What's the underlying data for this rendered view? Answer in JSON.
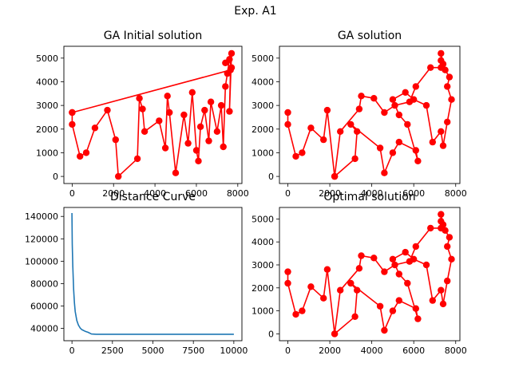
{
  "figure": {
    "suptitle": "Exp. A1",
    "route_color": "#ff0000",
    "curve_color": "#1f77b4"
  },
  "chart_data": [
    {
      "type": "line",
      "title": "GA Initial solution",
      "xlabel": "",
      "ylabel": "",
      "xlim": [
        -400,
        8200
      ],
      "ylim": [
        -300,
        5500
      ],
      "xticks": [
        0,
        2000,
        4000,
        6000,
        8000
      ],
      "yticks": [
        0,
        1000,
        2000,
        3000,
        4000,
        5000
      ],
      "marker": "o",
      "x": [
        0,
        0,
        380,
        680,
        1100,
        1700,
        2100,
        2230,
        3150,
        3250,
        3400,
        3500,
        4200,
        4500,
        4600,
        4700,
        5000,
        5400,
        5600,
        5800,
        6000,
        6100,
        6200,
        6400,
        6600,
        6700,
        7000,
        7200,
        7300,
        7400,
        7500,
        7600,
        7700,
        7400,
        7700,
        7600,
        7650,
        0
      ],
      "y": [
        2700,
        2200,
        850,
        1000,
        2050,
        2800,
        1550,
        0,
        750,
        3300,
        2850,
        1900,
        2350,
        1200,
        3400,
        2700,
        150,
        2600,
        1400,
        3550,
        1100,
        650,
        2100,
        2800,
        1500,
        3150,
        1900,
        3000,
        1250,
        3800,
        4350,
        4950,
        4600,
        4800,
        5200,
        2750,
        4500,
        2700
      ]
    },
    {
      "type": "line",
      "title": "GA solution",
      "xlabel": "",
      "ylabel": "",
      "xlim": [
        -400,
        8200
      ],
      "ylim": [
        -300,
        5500
      ],
      "xticks": [
        0,
        2000,
        4000,
        6000,
        8000
      ],
      "yticks": [
        0,
        1000,
        2000,
        3000,
        4000,
        5000
      ],
      "marker": "o",
      "x": [
        0,
        0,
        380,
        680,
        1100,
        1700,
        1880,
        2230,
        3200,
        3300,
        3000,
        4400,
        4600,
        5000,
        5300,
        6100,
        6200,
        5700,
        5300,
        5000,
        5600,
        6000,
        6600,
        6900,
        7300,
        7400,
        7600,
        7800,
        7600,
        7700,
        7500,
        7300,
        7300,
        7400,
        7300,
        6800,
        6100,
        5800,
        5100,
        4600,
        4100,
        3500,
        3400,
        2500,
        2230
      ],
      "y": [
        2700,
        2200,
        850,
        1000,
        2050,
        1550,
        2800,
        0,
        750,
        1900,
        2200,
        1200,
        150,
        1000,
        1450,
        1100,
        650,
        2200,
        2600,
        3250,
        3550,
        3250,
        3000,
        1450,
        1900,
        1300,
        2300,
        3250,
        3800,
        4200,
        4500,
        4900,
        5200,
        4750,
        4600,
        4600,
        3800,
        3150,
        3000,
        2700,
        3300,
        3400,
        2850,
        1900,
        0
      ]
    },
    {
      "type": "line",
      "title": "Distance Curve",
      "xlabel": "",
      "ylabel": "",
      "xlim": [
        -500,
        10500
      ],
      "ylim": [
        29000,
        148000
      ],
      "xticks": [
        0,
        2500,
        5000,
        7500,
        10000
      ],
      "yticks": [
        40000,
        60000,
        80000,
        100000,
        120000,
        140000
      ],
      "x": [
        0,
        20,
        50,
        100,
        150,
        200,
        300,
        400,
        500,
        600,
        800,
        1000,
        1200,
        1500,
        3000,
        5000,
        7500,
        10000
      ],
      "y": [
        143000,
        115000,
        95000,
        75000,
        63000,
        55000,
        47000,
        43000,
        40500,
        39000,
        37500,
        36500,
        35000,
        34800,
        34800,
        34800,
        34800,
        34800
      ]
    },
    {
      "type": "line",
      "title": "Optimal solution",
      "xlabel": "",
      "ylabel": "",
      "xlim": [
        -400,
        8200
      ],
      "ylim": [
        -300,
        5500
      ],
      "xticks": [
        0,
        2000,
        4000,
        6000,
        8000
      ],
      "yticks": [
        0,
        1000,
        2000,
        3000,
        4000,
        5000
      ],
      "marker": "o",
      "x": [
        0,
        0,
        380,
        680,
        1100,
        1700,
        1880,
        2230,
        3200,
        3300,
        3000,
        4400,
        4600,
        5000,
        5300,
        6100,
        6200,
        5700,
        5300,
        5000,
        5600,
        6000,
        6600,
        6900,
        7300,
        7400,
        7600,
        7800,
        7600,
        7700,
        7500,
        7300,
        7300,
        7400,
        7300,
        6800,
        6100,
        5800,
        5100,
        4600,
        4100,
        3500,
        3400,
        2500,
        2230
      ],
      "y": [
        2700,
        2200,
        850,
        1000,
        2050,
        1550,
        2800,
        0,
        750,
        1900,
        2200,
        1200,
        150,
        1000,
        1450,
        1100,
        650,
        2200,
        2600,
        3250,
        3550,
        3250,
        3000,
        1450,
        1900,
        1300,
        2300,
        3250,
        3800,
        4200,
        4500,
        4900,
        5200,
        4750,
        4600,
        4600,
        3800,
        3150,
        3000,
        2700,
        3300,
        3400,
        2850,
        1900,
        0
      ]
    }
  ]
}
